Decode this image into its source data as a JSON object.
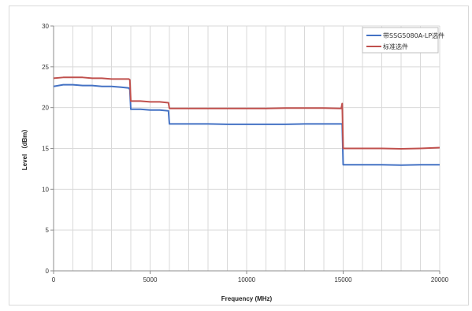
{
  "chart_data": {
    "type": "line",
    "title": "",
    "xlabel": "Frequency (MHz)",
    "ylabel": "Level （dBm）",
    "xlim": [
      0,
      20000
    ],
    "ylim": [
      0,
      30
    ],
    "x_ticks": [
      0,
      5000,
      10000,
      15000,
      20000
    ],
    "y_ticks": [
      0,
      5,
      10,
      15,
      20,
      25,
      30
    ],
    "grid": true,
    "legend_position": "top-right",
    "series": [
      {
        "name": "带SSG5080A-LP选件",
        "color": "#4472c4",
        "x": [
          0,
          500,
          1000,
          1500,
          2000,
          2500,
          3000,
          3500,
          3900,
          3950,
          4000,
          4500,
          5000,
          5500,
          5950,
          6000,
          7000,
          8000,
          9000,
          10000,
          11000,
          12000,
          13000,
          14000,
          14950,
          15000,
          16000,
          17000,
          18000,
          19000,
          20000
        ],
        "y": [
          22.6,
          22.8,
          22.8,
          22.7,
          22.7,
          22.6,
          22.6,
          22.5,
          22.4,
          22.2,
          19.8,
          19.8,
          19.7,
          19.7,
          19.6,
          18.0,
          18.0,
          18.0,
          17.95,
          17.95,
          17.95,
          17.95,
          18.0,
          18.0,
          18.0,
          13.0,
          13.0,
          13.0,
          12.95,
          13.0,
          13.0
        ]
      },
      {
        "name": "标准选件",
        "color": "#c0504d",
        "x": [
          0,
          500,
          1000,
          1500,
          2000,
          2500,
          3000,
          3500,
          3900,
          3950,
          4000,
          4500,
          5000,
          5500,
          5950,
          6000,
          7000,
          8000,
          9000,
          10000,
          11000,
          12000,
          13000,
          14000,
          14900,
          14950,
          15000,
          16000,
          17000,
          18000,
          19000,
          20000
        ],
        "y": [
          23.6,
          23.7,
          23.7,
          23.7,
          23.6,
          23.6,
          23.5,
          23.5,
          23.5,
          23.4,
          20.8,
          20.8,
          20.7,
          20.7,
          20.6,
          19.9,
          19.9,
          19.9,
          19.9,
          19.9,
          19.9,
          19.95,
          19.95,
          19.95,
          19.9,
          20.5,
          15.0,
          15.0,
          15.0,
          14.95,
          15.0,
          15.1
        ]
      }
    ]
  }
}
